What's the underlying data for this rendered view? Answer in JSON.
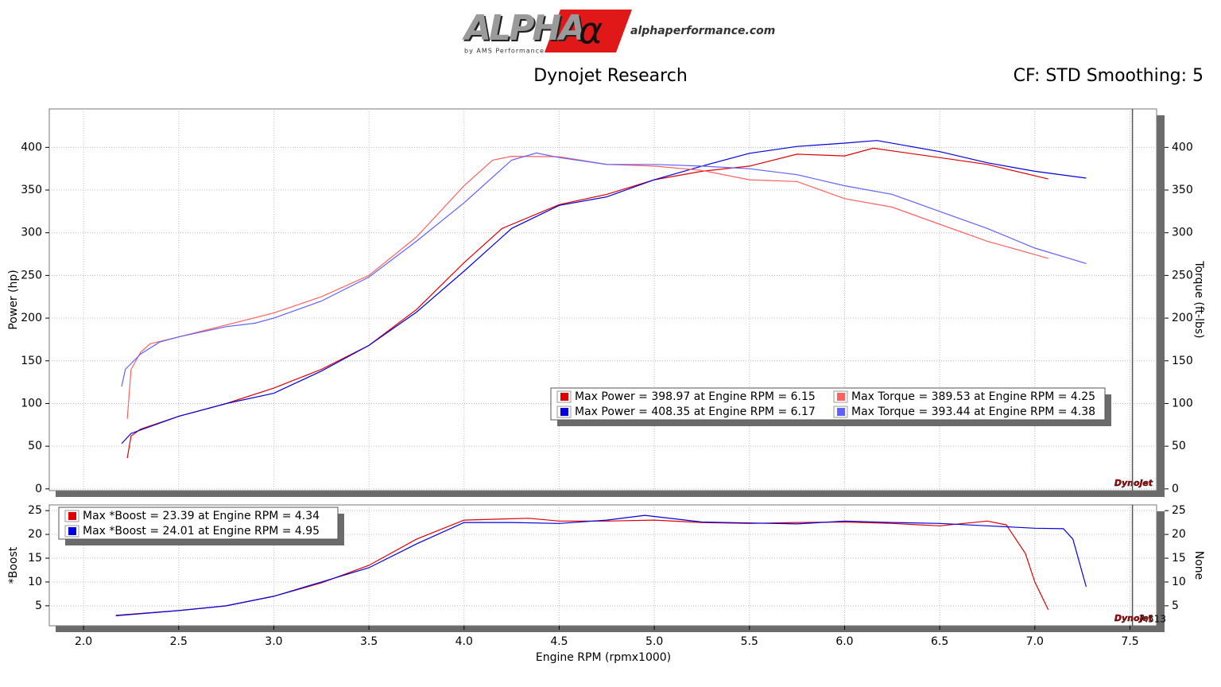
{
  "header": {
    "logo": "ALPHA",
    "logo_symbol": "α",
    "logo_tagline": "by AMS Performance",
    "website": "alphaperformance.com",
    "title": "Dynojet Research",
    "settings": "CF: STD Smoothing: 5"
  },
  "chart_data": [
    {
      "type": "line",
      "ylabel": "Power (hp)",
      "y2label": "Torque (ft-lbs)",
      "watermark": "Dynojet",
      "xlim": [
        1.82,
        7.64
      ],
      "xticks": [
        {
          "value": 2,
          "label": "2.0"
        },
        {
          "value": 2.5,
          "label": "2.5"
        },
        {
          "value": 3,
          "label": "3.0"
        },
        {
          "value": 3.5,
          "label": "3.5"
        },
        {
          "value": 4,
          "label": "4.0"
        },
        {
          "value": 4.5,
          "label": "4.5"
        },
        {
          "value": 5,
          "label": "5.0"
        },
        {
          "value": 5.5,
          "label": "5.5"
        },
        {
          "value": 6,
          "label": "6.0"
        },
        {
          "value": 6.5,
          "label": "6.5"
        },
        {
          "value": 7,
          "label": "7.0"
        },
        {
          "value": 7.5,
          "label": "7.5"
        }
      ],
      "ylim": [
        -2,
        445
      ],
      "yticks": [
        0,
        50,
        100,
        150,
        200,
        250,
        300,
        350,
        400
      ],
      "y2lim": [
        -2,
        445
      ],
      "y2ticks": [
        0,
        50,
        100,
        150,
        200,
        250,
        300,
        350,
        400
      ],
      "grid": true,
      "legend": "lower right",
      "series": [
        {
          "name": "Max Power = 398.97 at Engine RPM = 6.15",
          "color": "#e00000",
          "x": [
            2.23,
            2.25,
            2.3,
            2.5,
            2.75,
            3.0,
            3.25,
            3.5,
            3.75,
            4.0,
            4.2,
            4.5,
            4.75,
            5.0,
            5.25,
            5.5,
            5.75,
            6.0,
            6.15,
            6.5,
            6.75,
            7.07
          ],
          "values": [
            36,
            62,
            70,
            85,
            100,
            118,
            140,
            168,
            210,
            265,
            305,
            333,
            345,
            362,
            372,
            378,
            392,
            390,
            399,
            388,
            380,
            363
          ]
        },
        {
          "name": "Max Power = 408.35 at Engine RPM = 6.17",
          "color": "#0000e0",
          "x": [
            2.2,
            2.25,
            2.5,
            2.75,
            3.0,
            3.25,
            3.5,
            3.75,
            4.0,
            4.25,
            4.5,
            4.75,
            5.0,
            5.25,
            5.5,
            5.75,
            6.0,
            6.17,
            6.5,
            6.75,
            7.0,
            7.27
          ],
          "values": [
            53,
            65,
            85,
            100,
            112,
            138,
            168,
            207,
            255,
            305,
            332,
            342,
            362,
            378,
            393,
            401,
            405,
            408,
            395,
            382,
            372,
            364
          ]
        },
        {
          "name": "Max Torque = 389.53 at Engine RPM = 4.25",
          "color": "#ff6060",
          "axis": "y2",
          "x": [
            2.23,
            2.25,
            2.3,
            2.35,
            2.5,
            2.75,
            3.0,
            3.25,
            3.5,
            3.75,
            4.0,
            4.15,
            4.25,
            4.5,
            4.75,
            5.0,
            5.25,
            5.5,
            5.75,
            6.0,
            6.25,
            6.5,
            6.75,
            7.07
          ],
          "values": [
            82,
            140,
            160,
            170,
            178,
            192,
            206,
            225,
            250,
            295,
            355,
            385,
            389.5,
            389,
            380,
            378,
            373,
            362,
            360,
            340,
            330,
            310,
            290,
            270
          ]
        },
        {
          "name": "Max Torque = 393.44 at Engine RPM = 4.38",
          "color": "#6060ff",
          "axis": "y2",
          "x": [
            2.2,
            2.22,
            2.3,
            2.4,
            2.5,
            2.75,
            2.9,
            3.0,
            3.25,
            3.5,
            3.75,
            4.0,
            4.25,
            4.38,
            4.5,
            4.75,
            5.0,
            5.25,
            5.5,
            5.75,
            6.0,
            6.25,
            6.5,
            6.75,
            7.0,
            7.27
          ],
          "values": [
            120,
            140,
            158,
            172,
            178,
            190,
            194,
            200,
            220,
            248,
            290,
            335,
            385,
            393.4,
            388,
            380,
            380,
            378,
            375,
            368,
            355,
            345,
            325,
            305,
            282,
            264
          ]
        }
      ]
    },
    {
      "type": "line",
      "ylabel": "*Boost",
      "y2label": "None",
      "xlabel": "Engine RPM (rpmx1000)",
      "watermark": "Dynojet",
      "cursor": 7.513,
      "xlim": [
        1.82,
        7.64
      ],
      "xticks": [
        {
          "value": 2,
          "label": "2.0"
        },
        {
          "value": 2.5,
          "label": "2.5"
        },
        {
          "value": 3,
          "label": "3.0"
        },
        {
          "value": 3.5,
          "label": "3.5"
        },
        {
          "value": 4,
          "label": "4.0"
        },
        {
          "value": 4.5,
          "label": "4.5"
        },
        {
          "value": 5,
          "label": "5.0"
        },
        {
          "value": 5.5,
          "label": "5.5"
        },
        {
          "value": 6,
          "label": "6.0"
        },
        {
          "value": 6.5,
          "label": "6.5"
        },
        {
          "value": 7,
          "label": "7.0"
        },
        {
          "value": 7.5,
          "label": "7.5"
        }
      ],
      "ylim": [
        0.8,
        26.2
      ],
      "yticks": [
        5,
        10,
        15,
        20,
        25
      ],
      "grid": true,
      "legend": "upper left",
      "series": [
        {
          "name": "Max *Boost = 23.39 at Engine RPM = 4.34",
          "color": "#e00000",
          "x": [
            2.17,
            2.5,
            2.75,
            3.0,
            3.25,
            3.5,
            3.75,
            4.0,
            4.34,
            4.5,
            4.75,
            5.0,
            5.25,
            5.5,
            5.75,
            6.0,
            6.25,
            6.5,
            6.75,
            6.85,
            6.95,
            7.0,
            7.07
          ],
          "values": [
            3.0,
            4,
            5,
            7,
            9.8,
            13.5,
            19,
            23,
            23.39,
            22.8,
            22.8,
            23,
            22.5,
            22.3,
            22.5,
            22.6,
            22.3,
            21.8,
            22.8,
            22,
            16,
            10,
            4.2
          ]
        },
        {
          "name": "Max *Boost = 24.01 at Engine RPM = 4.95",
          "color": "#0000e0",
          "x": [
            2.17,
            2.5,
            2.75,
            3.0,
            3.25,
            3.5,
            3.75,
            4.0,
            4.25,
            4.5,
            4.75,
            4.95,
            5.25,
            5.5,
            5.75,
            6.0,
            6.25,
            6.5,
            6.75,
            7.0,
            7.15,
            7.2,
            7.27
          ],
          "values": [
            2.9,
            4,
            5,
            7,
            10,
            13,
            18,
            22.5,
            22.5,
            22.3,
            23,
            24.01,
            22.6,
            22.4,
            22.2,
            22.8,
            22.5,
            22.3,
            21.8,
            21.3,
            21.2,
            19,
            9
          ]
        }
      ]
    }
  ]
}
